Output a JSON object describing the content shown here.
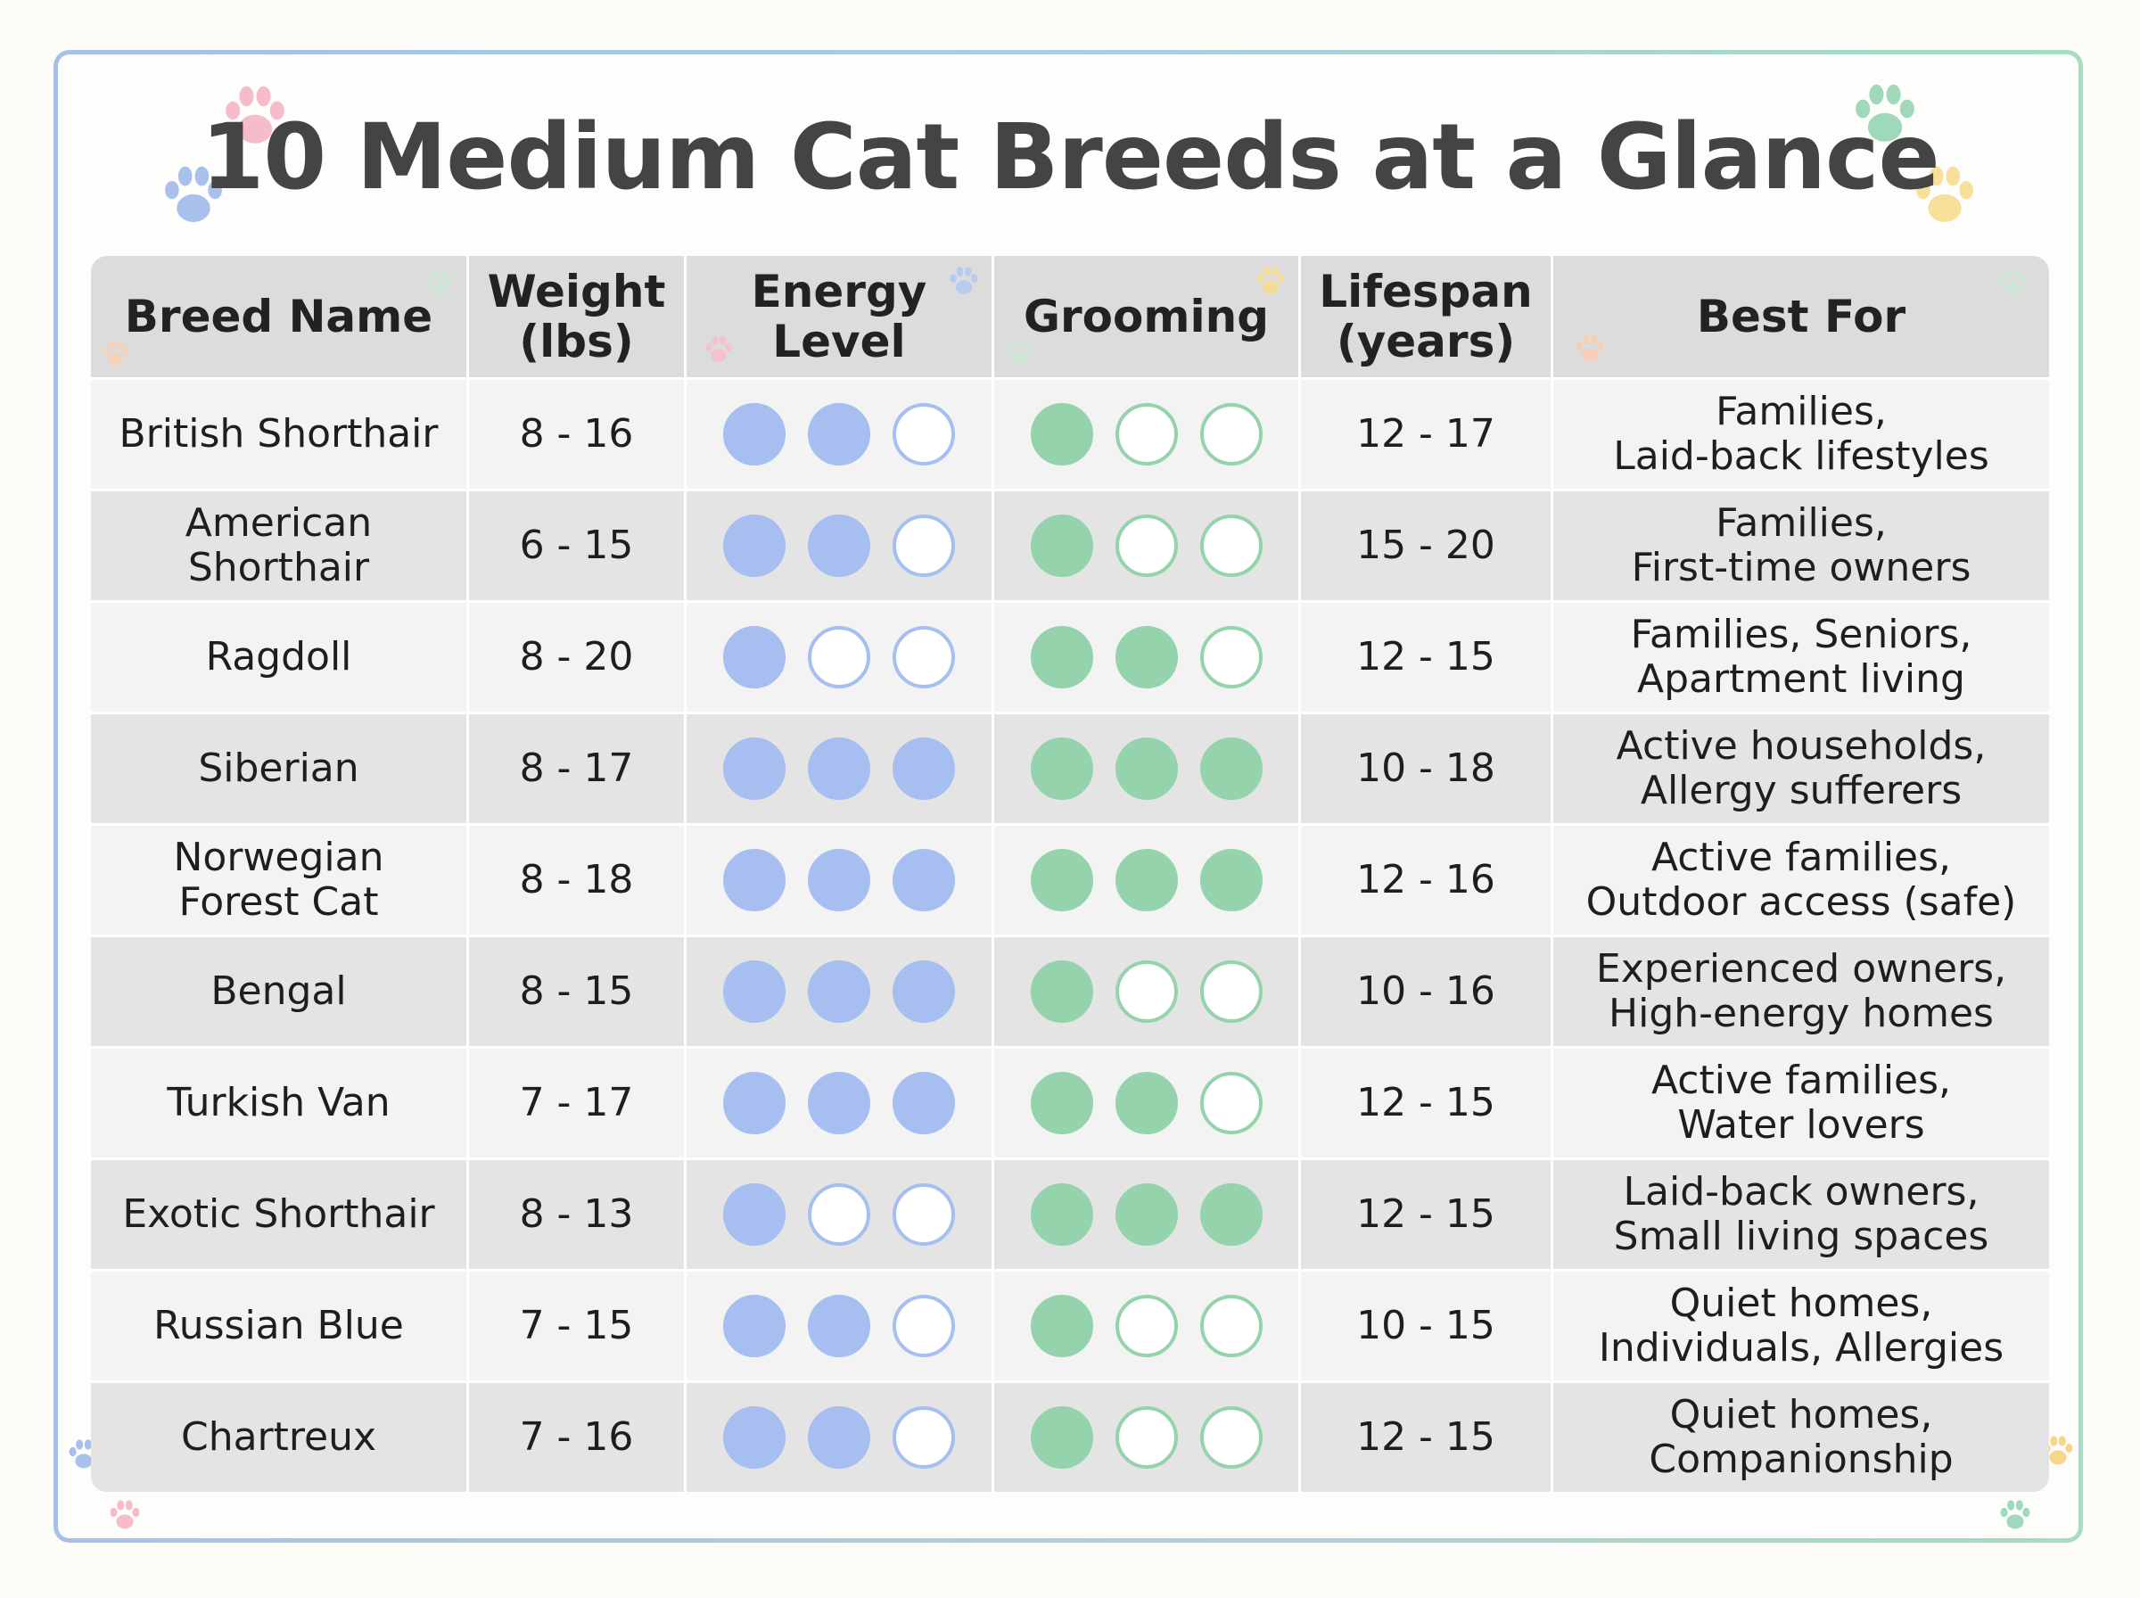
{
  "title": "10 Medium Cat Breeds at a Glance",
  "colors": {
    "energy_dot": "#a6bff0",
    "grooming_dot": "#95d3ad",
    "header_bg": "#dcdcdc",
    "row_light": "#f3f3f3",
    "row_dark": "#e4e4e4",
    "title_text": "#444444"
  },
  "decorations": [
    "paw-print-icon pink",
    "paw-print-icon blue",
    "paw-print-icon green",
    "paw-print-icon yellow"
  ],
  "table": {
    "headers": {
      "breed": "Breed Name",
      "weight": "Weight\n(lbs)",
      "energy": "Energy\nLevel",
      "grooming": "Grooming",
      "lifespan": "Lifespan\n(years)",
      "best_for": "Best For"
    },
    "rows": [
      {
        "breed": "British Shorthair",
        "weight": "8 - 16",
        "energy": 2,
        "grooming": 1,
        "lifespan": "12 - 17",
        "best_for": "Families,\nLaid-back lifestyles"
      },
      {
        "breed": "American\nShorthair",
        "weight": "6 - 15",
        "energy": 2,
        "grooming": 1,
        "lifespan": "15 - 20",
        "best_for": "Families,\nFirst-time owners"
      },
      {
        "breed": "Ragdoll",
        "weight": "8 - 20",
        "energy": 1,
        "grooming": 2,
        "lifespan": "12 - 15",
        "best_for": "Families, Seniors,\nApartment living"
      },
      {
        "breed": "Siberian",
        "weight": "8 - 17",
        "energy": 3,
        "grooming": 3,
        "lifespan": "10 - 18",
        "best_for": "Active households,\nAllergy sufferers"
      },
      {
        "breed": "Norwegian\nForest Cat",
        "weight": "8 - 18",
        "energy": 3,
        "grooming": 3,
        "lifespan": "12 - 16",
        "best_for": "Active families,\nOutdoor access (safe)"
      },
      {
        "breed": "Bengal",
        "weight": "8 - 15",
        "energy": 3,
        "grooming": 1,
        "lifespan": "10 - 16",
        "best_for": "Experienced owners,\nHigh-energy homes"
      },
      {
        "breed": "Turkish Van",
        "weight": "7 - 17",
        "energy": 3,
        "grooming": 2,
        "lifespan": "12 - 15",
        "best_for": "Active families,\nWater lovers"
      },
      {
        "breed": "Exotic Shorthair",
        "weight": "8 - 13",
        "energy": 1,
        "grooming": 3,
        "lifespan": "12 - 15",
        "best_for": "Laid-back owners,\nSmall living spaces"
      },
      {
        "breed": "Russian Blue",
        "weight": "7 - 15",
        "energy": 2,
        "grooming": 1,
        "lifespan": "10 - 15",
        "best_for": "Quiet homes,\nIndividuals, Allergies"
      },
      {
        "breed": "Chartreux",
        "weight": "7 - 16",
        "energy": 2,
        "grooming": 1,
        "lifespan": "12 - 15",
        "best_for": "Quiet homes,\nCompanionship"
      }
    ],
    "rating_max": 3
  }
}
